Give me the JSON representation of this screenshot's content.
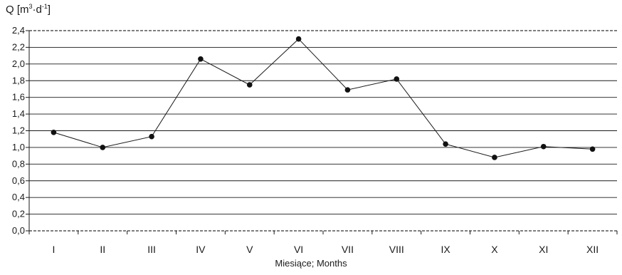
{
  "chart_data": {
    "type": "line",
    "ylabel_main": "Q [m",
    "ylabel_sup1": "3",
    "ylabel_mid": "·d",
    "ylabel_sup2": "-1",
    "ylabel_end": "]",
    "xlabel": "Miesiące; Months",
    "categories": [
      "I",
      "II",
      "III",
      "IV",
      "V",
      "VI",
      "VII",
      "VIII",
      "IX",
      "X",
      "XI",
      "XII"
    ],
    "series": [
      {
        "values": [
          1.18,
          1.0,
          1.13,
          2.06,
          1.75,
          2.3,
          1.69,
          1.82,
          1.04,
          0.88,
          1.01,
          0.98
        ]
      }
    ],
    "yticks": [
      "0,0",
      "0,2",
      "0,4",
      "0,6",
      "0,8",
      "1,0",
      "1,2",
      "1,4",
      "1,6",
      "1,8",
      "2,0",
      "2,2",
      "2,4"
    ],
    "ylim": [
      0,
      2.4
    ],
    "grid": true,
    "line_color": "#1a1a1a"
  }
}
